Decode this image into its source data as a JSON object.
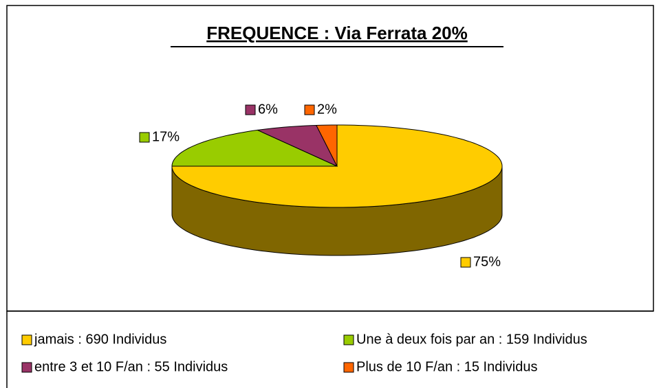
{
  "chart_data": {
    "type": "pie3d",
    "title": "FREQUENCE : Via Ferrata  20%",
    "categories": [
      "jamais : 690 Individus",
      "Une à deux fois par an : 159 Individus",
      "entre 3 et 10 F/an : 55 Individus",
      "Plus de 10 F/an : 15 Individus"
    ],
    "values": [
      75,
      17,
      6,
      2
    ],
    "value_labels": [
      "75%",
      "17%",
      "6%",
      "2%"
    ],
    "colors": [
      "#ffcc00",
      "#99cc00",
      "#993366",
      "#ff6600"
    ],
    "side_colors": [
      "#806600",
      "#4d6600",
      "#4d1a33",
      "#803300"
    ]
  }
}
